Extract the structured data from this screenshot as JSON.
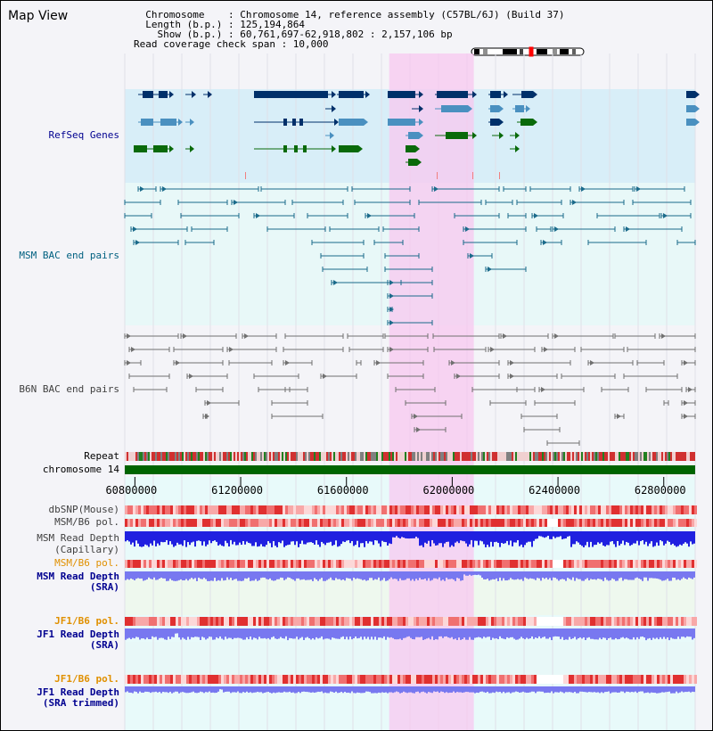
{
  "title": "Map View",
  "info": {
    "lines": [
      "  Chromosome    : Chromosome 14, reference assembly (C57BL/6J) (Build 37)",
      "  Length (b.p.) : 125,194,864",
      "    Show (b.p.) : 60,761,697-62,918,802 : 2,157,106 bp",
      "Read coverage check span : 10,000"
    ]
  },
  "tracks": {
    "refseq": "RefSeq Genes",
    "msm_bac": "MSM BAC end pairs",
    "b6n_bac": "B6N BAC end pairs",
    "repeat": "Repeat",
    "chromosome": "chromosome 14",
    "dbsnp": "dbSNP(Mouse)",
    "msm_pol_1": "MSM/B6 pol.",
    "msm_depth_cap_1": "MSM Read Depth",
    "msm_depth_cap_2": "(Capillary)",
    "msm_pol_2": "MSM/B6 pol.",
    "msm_depth_sra_1": "MSM Read Depth",
    "msm_depth_sra_2": "(SRA)",
    "jf1_pol_1": "JF1/B6 pol.",
    "jf1_depth_sra_1": "JF1 Read Depth",
    "jf1_depth_sra_2": "(SRA)",
    "jf1_pol_2": "JF1/B6 pol.",
    "jf1_trim_1": "JF1 Read Depth",
    "jf1_trim_2": "(SRA trimmed)"
  },
  "axis": {
    "ticks": [
      "60800000",
      "61200000",
      "61600000",
      "62000000",
      "62400000",
      "62800000"
    ],
    "tick_values": [
      60800000,
      61200000,
      61600000,
      62000000,
      62400000,
      62800000
    ],
    "range": [
      60761697,
      62918802
    ]
  },
  "highlight": {
    "start": 61761697,
    "end": 62081697
  },
  "colors": {
    "refseq_bg": "#d8eef8",
    "bac_bg": "#e8f8f8",
    "b6n_bg": "#f4f4f8",
    "highlight": "#f8c8f0",
    "dark_gene": "#00306a",
    "mid_gene": "#4a90c0",
    "green_gene": "#0a6a0a",
    "msm_bac_line": "#1a6a8a",
    "b6n_bac_line": "#707070",
    "chromosome": "#006400",
    "depth_dark": "#2020e0",
    "depth_light": "#7878f0",
    "label_blue": "#000090",
    "label_teal": "#006080",
    "label_orange": "#e09000"
  }
}
